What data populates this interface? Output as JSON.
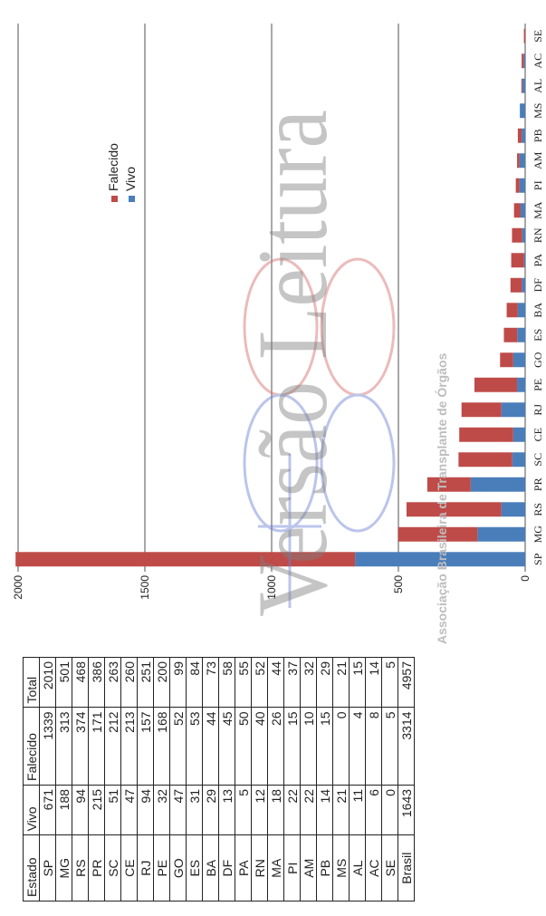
{
  "table": {
    "headers": [
      "Estado",
      "Vivo",
      "Falecido",
      "Total"
    ],
    "rows": [
      [
        "SP",
        "671",
        "1339",
        "2010"
      ],
      [
        "MG",
        "188",
        "313",
        "501"
      ],
      [
        "RS",
        "94",
        "374",
        "468"
      ],
      [
        "PR",
        "215",
        "171",
        "386"
      ],
      [
        "SC",
        "51",
        "212",
        "263"
      ],
      [
        "CE",
        "47",
        "213",
        "260"
      ],
      [
        "RJ",
        "94",
        "157",
        "251"
      ],
      [
        "PE",
        "32",
        "168",
        "200"
      ],
      [
        "GO",
        "47",
        "52",
        "99"
      ],
      [
        "ES",
        "31",
        "53",
        "84"
      ],
      [
        "BA",
        "29",
        "44",
        "73"
      ],
      [
        "DF",
        "13",
        "45",
        "58"
      ],
      [
        "PA",
        "5",
        "50",
        "55"
      ],
      [
        "RN",
        "12",
        "40",
        "52"
      ],
      [
        "MA",
        "18",
        "26",
        "44"
      ],
      [
        "PI",
        "22",
        "15",
        "37"
      ],
      [
        "AM",
        "22",
        "10",
        "32"
      ],
      [
        "PB",
        "14",
        "15",
        "29"
      ],
      [
        "MS",
        "21",
        "0",
        "21"
      ],
      [
        "AL",
        "11",
        "4",
        "15"
      ],
      [
        "AC",
        "6",
        "8",
        "14"
      ],
      [
        "SE",
        "0",
        "5",
        "5"
      ]
    ],
    "total": [
      "Brasil",
      "1643",
      "3314",
      "4957"
    ]
  },
  "chart_data": {
    "type": "bar",
    "stacked": true,
    "categories": [
      "SP",
      "MG",
      "RS",
      "PR",
      "SC",
      "CE",
      "RJ",
      "PE",
      "GO",
      "ES",
      "BA",
      "DF",
      "PA",
      "RN",
      "MA",
      "PI",
      "AM",
      "PB",
      "MS",
      "AL",
      "AC",
      "SE"
    ],
    "series": [
      {
        "name": "Vivo",
        "color": "#4a7ebb",
        "values": [
          671,
          188,
          94,
          215,
          51,
          47,
          94,
          32,
          47,
          31,
          29,
          13,
          5,
          12,
          18,
          22,
          22,
          14,
          21,
          11,
          6,
          0
        ]
      },
      {
        "name": "Falecido",
        "color": "#be4b48",
        "values": [
          1339,
          313,
          374,
          171,
          212,
          213,
          157,
          168,
          52,
          53,
          44,
          45,
          50,
          40,
          26,
          15,
          10,
          15,
          0,
          4,
          8,
          5
        ]
      }
    ],
    "yticks": [
      "0",
      "500",
      "1000",
      "1500",
      "2000"
    ],
    "ylim": [
      0,
      2000
    ],
    "grid": true,
    "legend_position": "top-right"
  },
  "watermark": {
    "text": "Versão Leitura",
    "org_text": "Associação Brasileira de Transplante de Órgãos"
  }
}
